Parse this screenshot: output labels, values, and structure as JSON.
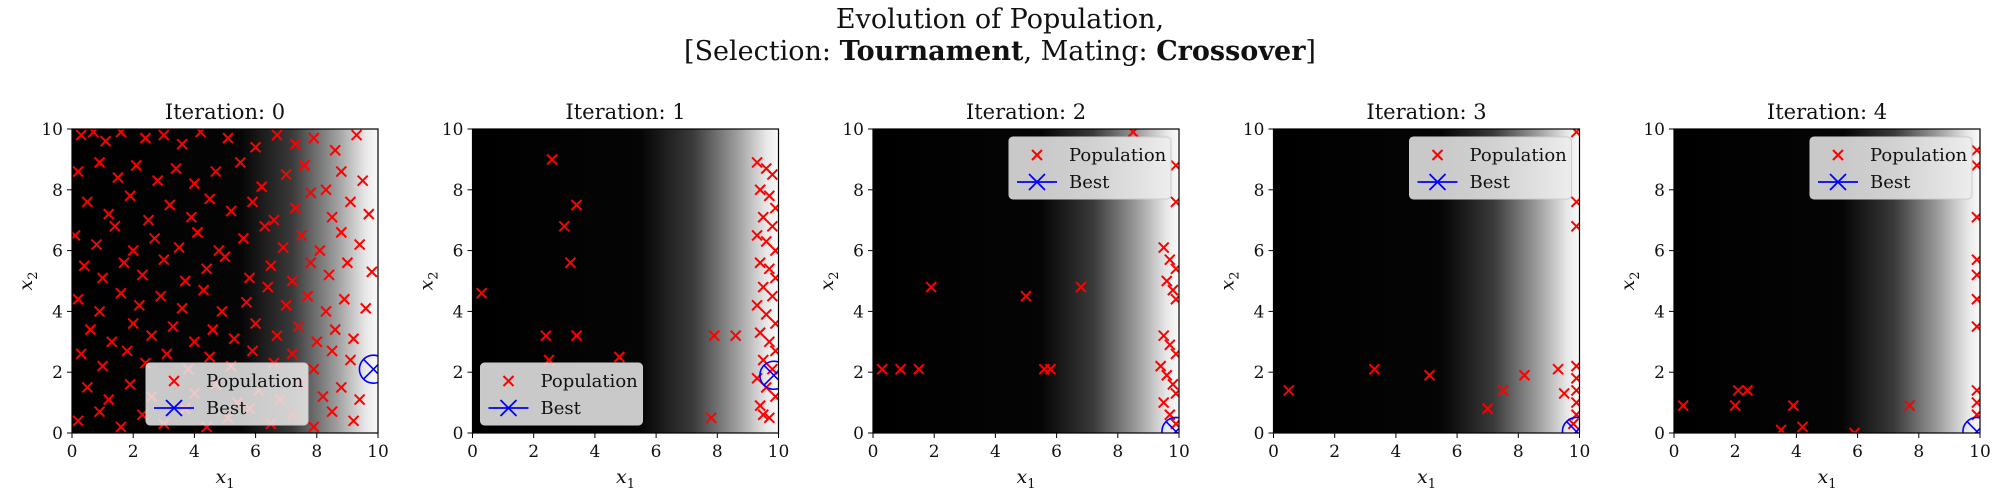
{
  "figure": {
    "title_line1": "Evolution of Population,",
    "title_line2_prefix": "[Selection: ",
    "title_selection": "Tournament",
    "title_line2_middle": ", Mating: ",
    "title_mating": "Crossover",
    "title_line2_suffix": "]"
  },
  "colors": {
    "population": "#ff0000",
    "best": "#0000ff",
    "legend_bg": "#ececec"
  },
  "legend_labels": {
    "population": "Population",
    "best": "Best"
  },
  "chart_data": [
    {
      "type": "scatter",
      "title": "Iteration: 0",
      "xlabel": "x_1",
      "ylabel": "x_2",
      "xlim": [
        0,
        10
      ],
      "ylim": [
        0,
        10
      ],
      "xticks": [
        0,
        2,
        4,
        6,
        8,
        10
      ],
      "yticks": [
        0,
        2,
        4,
        6,
        8,
        10
      ],
      "background": "heatmap (grayscale), black at low x_1, white near x_1 = 10",
      "legend_position": "lower-center",
      "best": [
        9.85,
        2.1
      ],
      "population": [
        [
          0.3,
          9.8
        ],
        [
          0.7,
          9.9
        ],
        [
          1.1,
          9.6
        ],
        [
          1.6,
          9.9
        ],
        [
          2.4,
          9.7
        ],
        [
          3.0,
          9.8
        ],
        [
          3.6,
          9.5
        ],
        [
          4.2,
          9.9
        ],
        [
          5.1,
          9.7
        ],
        [
          6.0,
          9.4
        ],
        [
          6.7,
          9.8
        ],
        [
          7.3,
          9.5
        ],
        [
          7.9,
          9.7
        ],
        [
          8.6,
          9.3
        ],
        [
          9.3,
          9.8
        ],
        [
          0.2,
          8.6
        ],
        [
          0.9,
          8.9
        ],
        [
          1.5,
          8.4
        ],
        [
          2.1,
          8.8
        ],
        [
          2.8,
          8.3
        ],
        [
          3.4,
          8.7
        ],
        [
          4.0,
          8.2
        ],
        [
          4.7,
          8.6
        ],
        [
          5.5,
          8.9
        ],
        [
          6.2,
          8.1
        ],
        [
          7.0,
          8.5
        ],
        [
          7.6,
          8.8
        ],
        [
          8.3,
          8.0
        ],
        [
          8.8,
          8.6
        ],
        [
          9.5,
          8.3
        ],
        [
          0.5,
          7.6
        ],
        [
          1.2,
          7.2
        ],
        [
          1.9,
          7.8
        ],
        [
          2.5,
          7.0
        ],
        [
          3.2,
          7.5
        ],
        [
          3.9,
          7.1
        ],
        [
          4.5,
          7.7
        ],
        [
          5.2,
          7.3
        ],
        [
          5.9,
          7.6
        ],
        [
          6.6,
          7.0
        ],
        [
          7.3,
          7.4
        ],
        [
          7.8,
          7.9
        ],
        [
          8.5,
          7.1
        ],
        [
          9.1,
          7.6
        ],
        [
          9.7,
          7.2
        ],
        [
          0.1,
          6.5
        ],
        [
          0.8,
          6.2
        ],
        [
          1.4,
          6.8
        ],
        [
          2.0,
          6.0
        ],
        [
          2.7,
          6.4
        ],
        [
          3.5,
          6.1
        ],
        [
          4.1,
          6.6
        ],
        [
          4.8,
          6.0
        ],
        [
          5.6,
          6.4
        ],
        [
          6.3,
          6.8
        ],
        [
          6.9,
          6.1
        ],
        [
          7.5,
          6.5
        ],
        [
          8.1,
          6.0
        ],
        [
          8.8,
          6.6
        ],
        [
          9.4,
          6.2
        ],
        [
          0.4,
          5.5
        ],
        [
          1.0,
          5.1
        ],
        [
          1.7,
          5.6
        ],
        [
          2.3,
          5.2
        ],
        [
          3.0,
          5.7
        ],
        [
          3.7,
          5.0
        ],
        [
          4.4,
          5.4
        ],
        [
          5.0,
          5.8
        ],
        [
          5.8,
          5.1
        ],
        [
          6.5,
          5.5
        ],
        [
          7.2,
          5.0
        ],
        [
          7.8,
          5.6
        ],
        [
          8.4,
          5.2
        ],
        [
          9.0,
          5.6
        ],
        [
          9.8,
          5.3
        ],
        [
          0.2,
          4.4
        ],
        [
          0.9,
          4.0
        ],
        [
          1.6,
          4.6
        ],
        [
          2.2,
          4.2
        ],
        [
          2.9,
          4.5
        ],
        [
          3.6,
          4.1
        ],
        [
          4.3,
          4.7
        ],
        [
          4.9,
          4.0
        ],
        [
          5.7,
          4.3
        ],
        [
          6.4,
          4.8
        ],
        [
          7.0,
          4.2
        ],
        [
          7.7,
          4.5
        ],
        [
          8.3,
          4.0
        ],
        [
          8.9,
          4.4
        ],
        [
          9.6,
          4.1
        ],
        [
          0.6,
          3.4
        ],
        [
          1.3,
          3.0
        ],
        [
          2.0,
          3.6
        ],
        [
          2.6,
          3.2
        ],
        [
          3.3,
          3.5
        ],
        [
          4.0,
          3.0
        ],
        [
          4.6,
          3.4
        ],
        [
          5.3,
          3.1
        ],
        [
          6.0,
          3.6
        ],
        [
          6.7,
          3.2
        ],
        [
          7.4,
          3.5
        ],
        [
          8.0,
          3.0
        ],
        [
          8.6,
          3.4
        ],
        [
          9.2,
          3.1
        ],
        [
          0.3,
          2.6
        ],
        [
          1.0,
          2.2
        ],
        [
          1.8,
          2.7
        ],
        [
          2.4,
          2.3
        ],
        [
          3.1,
          2.6
        ],
        [
          3.8,
          2.1
        ],
        [
          4.5,
          2.5
        ],
        [
          5.2,
          2.2
        ],
        [
          5.9,
          2.7
        ],
        [
          6.6,
          2.3
        ],
        [
          7.2,
          2.6
        ],
        [
          7.9,
          2.1
        ],
        [
          8.5,
          2.7
        ],
        [
          9.1,
          2.4
        ],
        [
          0.5,
          1.5
        ],
        [
          1.2,
          1.1
        ],
        [
          1.9,
          1.6
        ],
        [
          2.6,
          1.2
        ],
        [
          3.3,
          1.7
        ],
        [
          4.0,
          1.3
        ],
        [
          4.7,
          1.6
        ],
        [
          5.4,
          1.0
        ],
        [
          6.1,
          1.4
        ],
        [
          6.8,
          1.1
        ],
        [
          7.5,
          1.6
        ],
        [
          8.2,
          1.2
        ],
        [
          8.8,
          1.5
        ],
        [
          9.4,
          1.1
        ],
        [
          0.2,
          0.4
        ],
        [
          0.9,
          0.7
        ],
        [
          1.6,
          0.2
        ],
        [
          2.3,
          0.6
        ],
        [
          3.0,
          0.3
        ],
        [
          3.7,
          0.8
        ],
        [
          4.4,
          0.2
        ],
        [
          5.1,
          0.5
        ],
        [
          5.8,
          0.8
        ],
        [
          6.5,
          0.3
        ],
        [
          7.2,
          0.6
        ],
        [
          7.9,
          0.2
        ],
        [
          8.5,
          0.7
        ],
        [
          9.2,
          0.4
        ]
      ]
    },
    {
      "type": "scatter",
      "title": "Iteration: 1",
      "xlabel": "x_1",
      "ylabel": "x_2",
      "xlim": [
        0,
        10
      ],
      "ylim": [
        0,
        10
      ],
      "xticks": [
        0,
        2,
        4,
        6,
        8,
        10
      ],
      "yticks": [
        0,
        2,
        4,
        6,
        8,
        10
      ],
      "legend_position": "lower-left",
      "best": [
        9.85,
        1.9
      ],
      "population": [
        [
          0.3,
          4.6
        ],
        [
          2.6,
          9.0
        ],
        [
          3.0,
          6.8
        ],
        [
          3.2,
          5.6
        ],
        [
          3.4,
          7.5
        ],
        [
          2.4,
          3.2
        ],
        [
          2.5,
          2.4
        ],
        [
          3.4,
          3.2
        ],
        [
          4.8,
          2.5
        ],
        [
          7.8,
          0.5
        ],
        [
          7.9,
          3.2
        ],
        [
          8.6,
          3.2
        ],
        [
          9.3,
          8.9
        ],
        [
          9.6,
          8.7
        ],
        [
          9.8,
          8.5
        ],
        [
          9.4,
          8.0
        ],
        [
          9.7,
          7.8
        ],
        [
          9.9,
          7.4
        ],
        [
          9.5,
          7.1
        ],
        [
          9.8,
          6.8
        ],
        [
          9.3,
          6.5
        ],
        [
          9.6,
          6.3
        ],
        [
          9.9,
          6.0
        ],
        [
          9.4,
          5.6
        ],
        [
          9.7,
          5.4
        ],
        [
          9.9,
          5.1
        ],
        [
          9.5,
          4.8
        ],
        [
          9.8,
          4.5
        ],
        [
          9.3,
          4.2
        ],
        [
          9.6,
          3.9
        ],
        [
          9.9,
          3.6
        ],
        [
          9.4,
          3.3
        ],
        [
          9.7,
          3.0
        ],
        [
          9.9,
          2.7
        ],
        [
          9.5,
          2.4
        ],
        [
          9.8,
          2.1
        ],
        [
          9.3,
          1.8
        ],
        [
          9.6,
          1.5
        ],
        [
          9.9,
          1.2
        ],
        [
          9.4,
          0.9
        ],
        [
          9.7,
          0.5
        ],
        [
          9.5,
          0.6
        ]
      ]
    },
    {
      "type": "scatter",
      "title": "Iteration: 2",
      "xlabel": "x_1",
      "ylabel": "x_2",
      "xlim": [
        0,
        10
      ],
      "ylim": [
        0,
        10
      ],
      "xticks": [
        0,
        2,
        4,
        6,
        8,
        10
      ],
      "yticks": [
        0,
        2,
        4,
        6,
        8,
        10
      ],
      "legend_position": "upper-right",
      "best": [
        9.9,
        0.05
      ],
      "population": [
        [
          0.3,
          2.1
        ],
        [
          0.9,
          2.1
        ],
        [
          1.5,
          2.1
        ],
        [
          1.9,
          4.8
        ],
        [
          5.0,
          4.5
        ],
        [
          5.6,
          2.1
        ],
        [
          5.8,
          2.1
        ],
        [
          6.8,
          4.8
        ],
        [
          8.5,
          9.9
        ],
        [
          9.9,
          8.8
        ],
        [
          9.9,
          7.6
        ],
        [
          9.5,
          6.1
        ],
        [
          9.7,
          5.7
        ],
        [
          9.9,
          5.4
        ],
        [
          9.6,
          5.0
        ],
        [
          9.8,
          4.7
        ],
        [
          9.9,
          4.4
        ],
        [
          9.5,
          3.2
        ],
        [
          9.7,
          2.9
        ],
        [
          9.9,
          2.6
        ],
        [
          9.4,
          2.2
        ],
        [
          9.6,
          1.9
        ],
        [
          9.8,
          1.6
        ],
        [
          9.9,
          1.3
        ],
        [
          9.5,
          1.0
        ],
        [
          9.7,
          0.6
        ],
        [
          9.9,
          0.3
        ]
      ]
    },
    {
      "type": "scatter",
      "title": "Iteration: 3",
      "xlabel": "x_1",
      "ylabel": "x_2",
      "xlim": [
        0,
        10
      ],
      "ylim": [
        0,
        10
      ],
      "xticks": [
        0,
        2,
        4,
        6,
        8,
        10
      ],
      "yticks": [
        0,
        2,
        4,
        6,
        8,
        10
      ],
      "legend_position": "upper-right",
      "best": [
        9.9,
        0.05
      ],
      "population": [
        [
          0.5,
          1.4
        ],
        [
          3.3,
          2.1
        ],
        [
          5.1,
          1.9
        ],
        [
          7.0,
          0.8
        ],
        [
          7.5,
          1.4
        ],
        [
          8.2,
          1.9
        ],
        [
          9.3,
          2.1
        ],
        [
          9.5,
          1.3
        ],
        [
          9.9,
          9.9
        ],
        [
          9.9,
          7.6
        ],
        [
          9.9,
          6.8
        ],
        [
          9.9,
          2.2
        ],
        [
          9.9,
          1.8
        ],
        [
          9.9,
          1.4
        ],
        [
          9.9,
          1.0
        ],
        [
          9.9,
          0.6
        ],
        [
          9.8,
          0.3
        ]
      ]
    },
    {
      "type": "scatter",
      "title": "Iteration: 4",
      "xlabel": "x_1",
      "ylabel": "x_2",
      "xlim": [
        0,
        10
      ],
      "ylim": [
        0,
        10
      ],
      "xticks": [
        0,
        2,
        4,
        6,
        8,
        10
      ],
      "yticks": [
        0,
        2,
        4,
        6,
        8,
        10
      ],
      "legend_position": "upper-right",
      "best": [
        9.9,
        0.05
      ],
      "population": [
        [
          0.3,
          0.9
        ],
        [
          2.0,
          0.9
        ],
        [
          2.1,
          1.4
        ],
        [
          2.4,
          1.4
        ],
        [
          3.5,
          0.1
        ],
        [
          3.9,
          0.9
        ],
        [
          4.2,
          0.2
        ],
        [
          5.9,
          0.0
        ],
        [
          7.7,
          0.9
        ],
        [
          9.9,
          9.3
        ],
        [
          9.9,
          8.8
        ],
        [
          9.9,
          7.1
        ],
        [
          9.9,
          5.7
        ],
        [
          9.9,
          5.2
        ],
        [
          9.9,
          4.4
        ],
        [
          9.9,
          3.5
        ],
        [
          9.9,
          1.4
        ],
        [
          9.9,
          1.0
        ],
        [
          9.9,
          0.6
        ]
      ]
    }
  ]
}
